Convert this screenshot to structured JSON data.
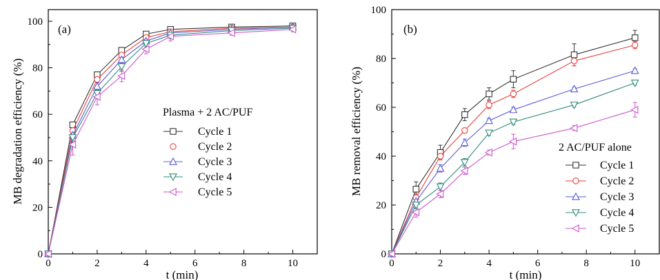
{
  "chart_data": [
    {
      "type": "line",
      "panel_label": "(a)",
      "xlabel": "t (min)",
      "ylabel": "MB degradation efficiency (%)",
      "xlim": [
        0,
        11
      ],
      "ylim": [
        0,
        105
      ],
      "xticks": [
        0,
        2,
        4,
        6,
        8,
        10
      ],
      "yticks": [
        0,
        20,
        40,
        60,
        80,
        100
      ],
      "legend_title": "Plasma + 2 AC/PUF",
      "legend_position": "center-right",
      "grid": false,
      "x": [
        0,
        1,
        2,
        3,
        4,
        5,
        7.5,
        10
      ],
      "series": [
        {
          "name": "Cycle 1",
          "marker": "square",
          "color": "#333333",
          "values": [
            0,
            55.5,
            77,
            87.5,
            94.5,
            96.5,
            97.5,
            98
          ],
          "errors": [
            0,
            0.5,
            0.8,
            0.8,
            0.8,
            0.5,
            0.5,
            0.5
          ]
        },
        {
          "name": "Cycle 2",
          "marker": "circle",
          "color": "#e8413c",
          "values": [
            0,
            53,
            75,
            85.5,
            93,
            95.5,
            97,
            97.5
          ],
          "errors": [
            0,
            1.0,
            1.0,
            1.0,
            1.0,
            1.0,
            0.8,
            0.5
          ]
        },
        {
          "name": "Cycle 3",
          "marker": "triangle-up",
          "color": "#5a5adc",
          "values": [
            0,
            51,
            72,
            83.5,
            91.5,
            95,
            96.5,
            97.5
          ],
          "errors": [
            0,
            1.5,
            1.5,
            1.5,
            1.0,
            1.0,
            0.8,
            0.5
          ]
        },
        {
          "name": "Cycle 4",
          "marker": "triangle-down",
          "color": "#2e8b7a",
          "values": [
            0,
            50,
            69,
            80.5,
            90.5,
            94,
            96,
            97
          ],
          "errors": [
            0,
            2.0,
            2.0,
            2.0,
            1.5,
            1.5,
            1.0,
            0.8
          ]
        },
        {
          "name": "Cycle 5",
          "marker": "triangle-left",
          "color": "#cc55cc",
          "values": [
            0,
            47,
            67.5,
            76.5,
            88,
            93.5,
            95,
            96.5
          ],
          "errors": [
            0,
            4.5,
            3.5,
            2.5,
            2.0,
            2.0,
            1.0,
            1.0
          ]
        }
      ]
    },
    {
      "type": "line",
      "panel_label": "(b)",
      "xlabel": "t (min)",
      "ylabel": "MB removal efficiency (%)",
      "xlim": [
        0,
        11
      ],
      "ylim": [
        0,
        100
      ],
      "xticks": [
        0,
        2,
        4,
        6,
        8,
        10
      ],
      "yticks": [
        0,
        20,
        40,
        60,
        80,
        100
      ],
      "legend_title": "2 AC/PUF alone",
      "legend_position": "bottom-right",
      "grid": false,
      "x": [
        0,
        1,
        2,
        3,
        4,
        5,
        7.5,
        10
      ],
      "series": [
        {
          "name": "Cycle 1",
          "marker": "square",
          "color": "#333333",
          "values": [
            0,
            26.5,
            41.5,
            57,
            65.5,
            71.5,
            81.5,
            88.5
          ],
          "errors": [
            0,
            3.0,
            3.0,
            2.5,
            2.5,
            3.5,
            4.5,
            3.0
          ]
        },
        {
          "name": "Cycle 2",
          "marker": "circle",
          "color": "#e8413c",
          "values": [
            0,
            23,
            40,
            50.5,
            61,
            65.5,
            79,
            85.5
          ],
          "errors": [
            0,
            1.5,
            1.5,
            1.0,
            1.5,
            1.5,
            2.0,
            1.5
          ]
        },
        {
          "name": "Cycle 3",
          "marker": "triangle-up",
          "color": "#5a5adc",
          "values": [
            0,
            21.5,
            35,
            45.5,
            54.5,
            59,
            67.5,
            75
          ],
          "errors": [
            0,
            1.5,
            1.5,
            1.5,
            1.0,
            1.0,
            0.8,
            0.8
          ]
        },
        {
          "name": "Cycle 4",
          "marker": "triangle-down",
          "color": "#2e8b7a",
          "values": [
            0,
            20,
            27.5,
            37.5,
            49.5,
            54,
            61,
            70
          ],
          "errors": [
            0,
            1.5,
            1.5,
            1.5,
            1.0,
            1.0,
            0.8,
            0.8
          ]
        },
        {
          "name": "Cycle 5",
          "marker": "triangle-left",
          "color": "#cc55cc",
          "values": [
            0,
            17,
            24.5,
            34,
            41.5,
            46,
            51.5,
            59
          ],
          "errors": [
            0,
            2.0,
            1.5,
            1.5,
            1.0,
            3.0,
            1.0,
            3.0
          ]
        }
      ]
    }
  ]
}
